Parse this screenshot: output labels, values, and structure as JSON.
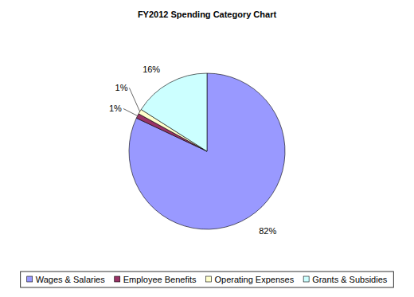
{
  "chart_data": {
    "type": "pie",
    "title": "FY2012 Spending Category Chart",
    "categories": [
      "Wages & Salaries",
      "Employee Benefits",
      "Operating Expenses",
      "Grants & Subsidies"
    ],
    "values": [
      82,
      1,
      1,
      16
    ],
    "value_labels": [
      "82%",
      "1%",
      "1%",
      "16%"
    ],
    "colors": [
      "#9999ff",
      "#993366",
      "#ffffcc",
      "#ccffff"
    ],
    "data_labels": true,
    "legend": "bottom"
  }
}
